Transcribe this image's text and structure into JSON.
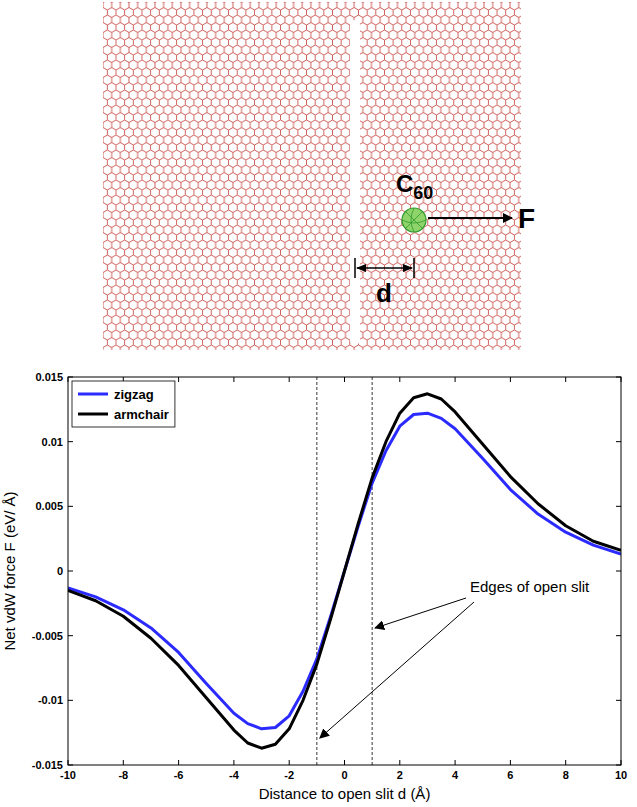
{
  "diagram": {
    "molecule": "C60",
    "force": "F",
    "distance": "d"
  },
  "chart_data": {
    "type": "line",
    "x_label": "Distance to open slit d (Å)",
    "y_label": "Net vdW force F (eV/ Å)",
    "x": [
      -10,
      -9,
      -8,
      -7,
      -6,
      -5,
      -4,
      -3.5,
      -3,
      -2.5,
      -2,
      -1.5,
      -1,
      -0.5,
      0,
      0.5,
      1,
      1.5,
      2,
      2.5,
      3,
      3.5,
      4,
      5,
      6,
      7,
      8,
      9,
      10
    ],
    "series": [
      {
        "name": "zigzag",
        "color": "#2b2bff",
        "values": [
          -0.0013,
          -0.002,
          -0.003,
          -0.0044,
          -0.0063,
          -0.0087,
          -0.011,
          -0.0118,
          -0.0122,
          -0.0121,
          -0.0112,
          -0.0093,
          -0.0068,
          -0.0035,
          0,
          0.0035,
          0.0068,
          0.0093,
          0.0112,
          0.0121,
          0.0122,
          0.0118,
          0.011,
          0.0087,
          0.0063,
          0.0044,
          0.003,
          0.002,
          0.0013
        ]
      },
      {
        "name": "armchair",
        "color": "#000000",
        "values": [
          -0.0015,
          -0.0023,
          -0.0035,
          -0.0052,
          -0.0073,
          -0.0098,
          -0.0123,
          -0.0133,
          -0.0137,
          -0.0134,
          -0.0122,
          -0.01,
          -0.0072,
          -0.0037,
          0,
          0.0037,
          0.0072,
          0.01,
          0.0122,
          0.0134,
          0.0137,
          0.0133,
          0.0123,
          0.0098,
          0.0073,
          0.0052,
          0.0035,
          0.0023,
          0.0016
        ]
      }
    ],
    "xlim": [
      -10,
      10
    ],
    "ylim": [
      -0.015,
      0.015
    ],
    "xticks": [
      -10,
      -8,
      -6,
      -4,
      -2,
      0,
      2,
      4,
      6,
      8,
      10
    ],
    "yticks": [
      -0.015,
      -0.01,
      -0.005,
      0,
      0.005,
      0.01,
      0.015
    ],
    "grid": false,
    "legend": "upper left",
    "vlines": [
      -1,
      1
    ],
    "annotation": "Edges of open slit"
  }
}
